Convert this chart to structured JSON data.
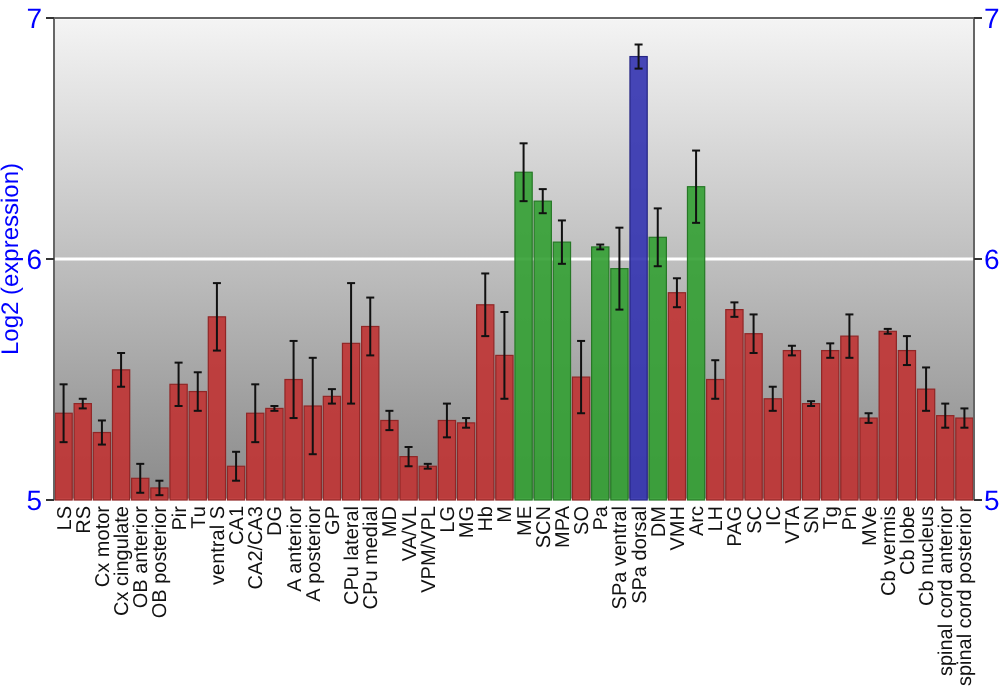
{
  "chart_data": {
    "type": "bar",
    "ylabel": "Log2 (expression)",
    "categories": [
      "LS",
      "RS",
      "Cx motor",
      "Cx cingulate",
      "OB anterior",
      "OB posterior",
      "Pir",
      "Tu",
      "ventral S",
      "CA1",
      "CA2/CA3",
      "DG",
      "A anterior",
      "A posterior",
      "GP",
      "CPu lateral",
      "CPu medial",
      "MD",
      "VA/VL",
      "VPM/VPL",
      "LG",
      "MG",
      "Hb",
      "M",
      "ME",
      "SCN",
      "MPA",
      "SO",
      "Pa",
      "SPa ventral",
      "SPa dorsal",
      "DM",
      "VMH",
      "Arc",
      "LH",
      "PAG",
      "SC",
      "IC",
      "VTA",
      "SN",
      "Tg",
      "Pn",
      "MVe",
      "Cb vermis",
      "Cb lobe",
      "Cb nucleus",
      "spinal cord anterior",
      "spinal cord posterior"
    ],
    "values": [
      5.36,
      5.4,
      5.28,
      5.54,
      5.09,
      5.05,
      5.48,
      5.45,
      5.76,
      5.14,
      5.36,
      5.38,
      5.5,
      5.39,
      5.43,
      5.65,
      5.72,
      5.33,
      5.18,
      5.14,
      5.33,
      5.32,
      5.81,
      5.6,
      6.36,
      6.24,
      6.07,
      5.51,
      6.05,
      5.96,
      6.84,
      6.09,
      5.86,
      6.3,
      5.5,
      5.79,
      5.69,
      5.42,
      5.62,
      5.4,
      5.62,
      5.68,
      5.34,
      5.7,
      5.62,
      5.46,
      5.35,
      5.34
    ],
    "errors": [
      0.12,
      0.02,
      0.05,
      0.07,
      0.06,
      0.03,
      0.09,
      0.08,
      0.14,
      0.06,
      0.12,
      0.01,
      0.16,
      0.2,
      0.03,
      0.25,
      0.12,
      0.04,
      0.04,
      0.01,
      0.07,
      0.02,
      0.13,
      0.18,
      0.12,
      0.05,
      0.09,
      0.15,
      0.01,
      0.17,
      0.05,
      0.12,
      0.06,
      0.15,
      0.08,
      0.03,
      0.08,
      0.05,
      0.02,
      0.01,
      0.03,
      0.09,
      0.02,
      0.01,
      0.06,
      0.09,
      0.05,
      0.04
    ],
    "colors": [
      "#c03333",
      "#c03333",
      "#c03333",
      "#c03333",
      "#c03333",
      "#c03333",
      "#c03333",
      "#c03333",
      "#c03333",
      "#c03333",
      "#c03333",
      "#c03333",
      "#c03333",
      "#c03333",
      "#c03333",
      "#c03333",
      "#c03333",
      "#c03333",
      "#c03333",
      "#c03333",
      "#c03333",
      "#c03333",
      "#c03333",
      "#c03333",
      "#33a033",
      "#33a033",
      "#33a033",
      "#c03333",
      "#33a033",
      "#33a033",
      "#3333b0",
      "#33a033",
      "#c03333",
      "#33a033",
      "#c03333",
      "#c03333",
      "#c03333",
      "#c03333",
      "#c03333",
      "#c03333",
      "#c03333",
      "#c03333",
      "#c03333",
      "#c03333",
      "#c03333",
      "#c03333",
      "#c03333",
      "#c03333"
    ],
    "ylim": [
      5,
      7
    ],
    "yticks": [
      5,
      6,
      7
    ],
    "y2lim": [
      5,
      7
    ],
    "y2ticks": [
      5,
      6,
      7
    ],
    "grid": "y"
  }
}
